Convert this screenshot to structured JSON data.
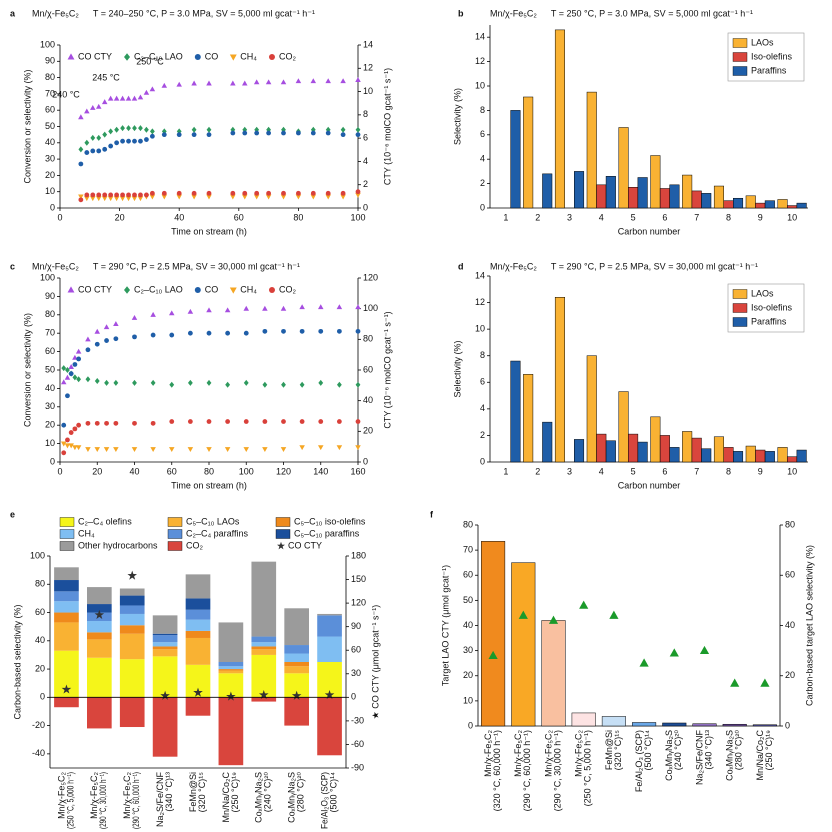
{
  "chart_data": [
    {
      "type": "scatter",
      "label": "a",
      "title": "Mn/χ-Fe₅C₂",
      "subtitle": "T = 240–250 °C, P = 3.0 MPa, SV = 5,000 ml gcat⁻¹ h⁻¹",
      "xlabel": "Time on stream (h)",
      "ylabel": "Conversion or selectivity (%)",
      "y2label": "CTY (10⁻⁶ molCO gcat⁻¹ s⁻¹)",
      "xlim": [
        0,
        100
      ],
      "xticks": [
        0,
        20,
        40,
        60,
        80,
        100
      ],
      "ylim": [
        0,
        100
      ],
      "yticks": [
        0,
        10,
        20,
        30,
        40,
        50,
        60,
        70,
        80,
        90,
        100
      ],
      "y2lim": [
        0,
        14
      ],
      "y2ticks": [
        0,
        2,
        4,
        6,
        8,
        10,
        12,
        14
      ],
      "legend": "top",
      "annotations": [
        "240 °C",
        "245 °C",
        "250 °C"
      ],
      "x": [
        7,
        9,
        11,
        13,
        15,
        17,
        19,
        21,
        23,
        25,
        27,
        29,
        31,
        35,
        40,
        45,
        50,
        54,
        58,
        62,
        66,
        70,
        75,
        80,
        85,
        90,
        95,
        100
      ],
      "series": [
        {
          "name": "CO CTY",
          "color": "#a64ee0",
          "marker": "triangle",
          "axis": "y2",
          "values": [
            7.8,
            8.3,
            8.6,
            8.7,
            9.1,
            9.4,
            9.4,
            9.4,
            9.4,
            9.4,
            9.5,
            9.9,
            10.2,
            10.5,
            10.6,
            10.7,
            10.7,
            null,
            10.7,
            10.7,
            10.8,
            10.8,
            10.8,
            10.9,
            10.9,
            10.9,
            10.9,
            11.0
          ]
        },
        {
          "name": "C₂–C₁₀ LAO",
          "color": "#2e9a5e",
          "marker": "diamond",
          "values": [
            36,
            40,
            43,
            43,
            45,
            47,
            48,
            49,
            49,
            49,
            49,
            48,
            47,
            47,
            47,
            48,
            48,
            null,
            48,
            48,
            48,
            48,
            48,
            47,
            48,
            48,
            48,
            48
          ]
        },
        {
          "name": "CO",
          "color": "#1f5ea8",
          "marker": "circle",
          "values": [
            27,
            34,
            35,
            35,
            36,
            38,
            40,
            41,
            41,
            41,
            41,
            42,
            44,
            45,
            45,
            45,
            45,
            null,
            46,
            46,
            46,
            46,
            46,
            46,
            46,
            46,
            45,
            45
          ]
        },
        {
          "name": "CH₄",
          "color": "#f5a623",
          "marker": "triangle-down",
          "values": [
            7,
            6,
            6,
            6,
            6,
            6,
            6,
            6,
            6,
            6,
            6,
            7,
            7,
            7,
            7,
            7,
            7,
            null,
            7,
            7,
            7,
            7,
            7,
            7,
            7,
            7,
            7,
            8
          ]
        },
        {
          "name": "CO₂",
          "color": "#d9403a",
          "marker": "circle",
          "values": [
            5,
            8,
            8,
            8,
            8,
            8,
            8,
            8,
            8,
            8,
            8,
            8,
            9,
            9,
            9,
            9,
            9,
            null,
            9,
            9,
            9,
            9,
            9,
            9,
            9,
            9,
            9,
            10
          ]
        }
      ]
    },
    {
      "type": "bar",
      "label": "b",
      "title": "Mn/χ-Fe₅C₂",
      "subtitle": "T = 250 °C, P = 3.0 MPa, SV = 5,000 ml gcat⁻¹ h⁻¹",
      "xlabel": "Carbon number",
      "ylabel": "Selectivity (%)",
      "ylim": [
        0,
        15
      ],
      "yticks": [
        0,
        2,
        4,
        6,
        8,
        10,
        12,
        14
      ],
      "legend": "upper right",
      "categories": [
        1,
        2,
        3,
        4,
        5,
        6,
        7,
        8,
        9,
        10
      ],
      "series": [
        {
          "name": "LAOs",
          "color": "#f9b233",
          "values": [
            null,
            9.1,
            14.6,
            9.5,
            6.6,
            4.3,
            2.7,
            1.8,
            1.0,
            0.7
          ]
        },
        {
          "name": "Iso-olefins",
          "color": "#d9453d",
          "values": [
            null,
            null,
            null,
            1.9,
            1.7,
            1.6,
            1.4,
            0.6,
            0.4,
            0.2
          ]
        },
        {
          "name": "Paraffins",
          "color": "#1f5ea8",
          "values": [
            8.0,
            2.8,
            3.0,
            2.6,
            2.5,
            1.9,
            1.2,
            0.8,
            0.6,
            0.4
          ]
        }
      ]
    },
    {
      "type": "scatter",
      "label": "c",
      "title": "Mn/χ-Fe₅C₂",
      "subtitle": "T = 290 °C, P = 2.5 MPa, SV = 30,000 ml gcat⁻¹ h⁻¹",
      "xlabel": "Time on stream (h)",
      "ylabel": "Conversion or selectivity (%)",
      "y2label": "CTY (10⁻⁶ molCO gcat⁻¹ s⁻¹)",
      "xlim": [
        0,
        160
      ],
      "xticks": [
        0,
        20,
        40,
        60,
        80,
        100,
        120,
        140,
        160
      ],
      "ylim": [
        0,
        100
      ],
      "yticks": [
        0,
        10,
        20,
        30,
        40,
        50,
        60,
        70,
        80,
        90,
        100
      ],
      "y2lim": [
        0,
        120
      ],
      "y2ticks": [
        0,
        20,
        40,
        60,
        80,
        100,
        120
      ],
      "legend": "top",
      "x": [
        2,
        4,
        6,
        8,
        10,
        15,
        20,
        25,
        30,
        40,
        50,
        60,
        70,
        80,
        90,
        100,
        110,
        120,
        130,
        140,
        150,
        160
      ],
      "series": [
        {
          "name": "CO CTY",
          "color": "#a64ee0",
          "marker": "triangle",
          "axis": "y2",
          "values": [
            52,
            55,
            62,
            68,
            72,
            80,
            85,
            88,
            90,
            94,
            96,
            97,
            98,
            99,
            99,
            100,
            100,
            100,
            101,
            101,
            101,
            101
          ]
        },
        {
          "name": "C₂–C₁₀ LAO",
          "color": "#2e9a5e",
          "marker": "diamond",
          "values": [
            51,
            50,
            48,
            46,
            45,
            45,
            44,
            43,
            43,
            43,
            43,
            42,
            43,
            43,
            42,
            43,
            42,
            42,
            42,
            43,
            42,
            42
          ]
        },
        {
          "name": "CO",
          "color": "#1f5ea8",
          "marker": "circle",
          "values": [
            20,
            36,
            48,
            53,
            56,
            61,
            64,
            66,
            67,
            68,
            69,
            69,
            70,
            70,
            70,
            70,
            71,
            71,
            71,
            71,
            71,
            71
          ]
        },
        {
          "name": "CH₄",
          "color": "#f5a623",
          "marker": "triangle-down",
          "values": [
            10,
            9,
            9,
            8,
            8,
            7,
            7,
            7,
            7,
            7,
            7,
            7,
            7,
            7,
            7,
            7,
            7,
            7,
            8,
            8,
            8,
            8
          ]
        },
        {
          "name": "CO₂",
          "color": "#d9403a",
          "marker": "circle",
          "values": [
            5,
            12,
            16,
            18,
            20,
            21,
            21,
            21,
            21,
            21,
            21,
            22,
            22,
            22,
            22,
            22,
            22,
            22,
            22,
            22,
            22,
            22
          ]
        }
      ]
    },
    {
      "type": "bar",
      "label": "d",
      "title": "Mn/χ-Fe₅C₂",
      "subtitle": "T = 290 °C, P = 2.5 MPa, SV = 30,000 ml gcat⁻¹ h⁻¹",
      "xlabel": "Carbon number",
      "ylabel": "Selectivity (%)",
      "ylim": [
        0,
        14
      ],
      "yticks": [
        0,
        2,
        4,
        6,
        8,
        10,
        12,
        14
      ],
      "legend": "upper right",
      "categories": [
        1,
        2,
        3,
        4,
        5,
        6,
        7,
        8,
        9,
        10
      ],
      "series": [
        {
          "name": "LAOs",
          "color": "#f9b233",
          "values": [
            null,
            6.6,
            12.4,
            8.0,
            5.3,
            3.4,
            2.3,
            1.9,
            1.2,
            1.1
          ]
        },
        {
          "name": "Iso-olefins",
          "color": "#d9453d",
          "values": [
            null,
            null,
            null,
            2.1,
            2.1,
            2.0,
            1.8,
            1.1,
            0.9,
            0.4
          ]
        },
        {
          "name": "Paraffins",
          "color": "#1f5ea8",
          "values": [
            7.6,
            3.0,
            1.7,
            1.6,
            1.5,
            1.1,
            1.0,
            0.8,
            0.8,
            0.9
          ]
        }
      ]
    },
    {
      "type": "stacked_bar",
      "label": "e",
      "ylabel": "Carbon-based selectivity (%)",
      "y2label": "★ CO CTY (μmol gcat⁻¹ s⁻¹)",
      "ylim": [
        -50,
        100
      ],
      "yticks": [
        -40,
        -20,
        0,
        20,
        40,
        60,
        80,
        100
      ],
      "y2lim": [
        -90,
        180
      ],
      "y2ticks": [
        -90,
        -60,
        -30,
        0,
        30,
        60,
        90,
        120,
        150,
        180
      ],
      "legend": "above",
      "categories": [
        [
          "Mn/χ-Fe₅C₂",
          "(250 °C, 5,000 h⁻¹)"
        ],
        [
          "Mn/χ-Fe₅C₂",
          "(290 °C, 30,000 h⁻¹)"
        ],
        [
          "Mn/χ-Fe₅C₂",
          "(290 °C, 60,000 h⁻¹)"
        ],
        [
          "Na₂S/Fe/CNF",
          "(340 °C)¹³"
        ],
        [
          "FeMn@Si",
          "(320 °C)¹⁵"
        ],
        [
          "Mn/Na/Co₂C",
          "(250 °C)¹⁹"
        ],
        [
          "CoₓMnᵧNa₂S",
          "(240 °C)²⁰"
        ],
        [
          "CoₓMnᵧNa₂S",
          "(280 °C)²⁰"
        ],
        [
          "Fe/Al₂O₃ (SCP)",
          "(500 °C)¹⁴"
        ]
      ],
      "series": [
        {
          "name": "C₂–C₄ olefins",
          "color": "#f5f51a",
          "values": [
            33,
            28,
            27,
            29,
            23,
            17,
            30,
            17,
            25
          ]
        },
        {
          "name": "C₅–C₁₀ LAOs",
          "color": "#f9b233",
          "values": [
            20,
            13,
            18,
            5,
            19,
            2,
            4,
            5,
            0
          ]
        },
        {
          "name": "C₅–C₁₀ iso-olefins",
          "color": "#ef8a1c",
          "values": [
            7,
            5,
            6,
            2,
            5,
            1,
            2,
            3,
            0
          ]
        },
        {
          "name": "CH₄",
          "color": "#7fbef2",
          "values": [
            8,
            8,
            8,
            3,
            8,
            2,
            3,
            6,
            18
          ]
        },
        {
          "name": "C₂–C₄ paraffins",
          "color": "#5b8fd9",
          "values": [
            7,
            6,
            6,
            5,
            7,
            3,
            4,
            6,
            15
          ]
        },
        {
          "name": "C₅–C₁₀ paraffins",
          "color": "#1b4f9c",
          "values": [
            8,
            6,
            7,
            1,
            8,
            0,
            0,
            0,
            0
          ]
        },
        {
          "name": "Other hydrocarbons",
          "color": "#9b9b9b",
          "values": [
            9,
            12,
            5,
            13,
            17,
            28,
            53,
            26,
            1
          ]
        },
        {
          "name": "CO₂",
          "color": "#d9453d",
          "values": [
            -7,
            -22,
            -21,
            -42,
            -13,
            -48,
            -3,
            -20,
            -41
          ]
        },
        {
          "name": "CO CTY",
          "color": "#333333",
          "marker": "star",
          "axis": "y2",
          "values": [
            10,
            105,
            155,
            2,
            6,
            1,
            3,
            2,
            3
          ]
        }
      ]
    },
    {
      "type": "bar",
      "label": "f",
      "ylabel": "Target LAO CTY (μmol gcat⁻¹)",
      "y2label": "Carbon-based target LAO selectivity (%)",
      "ylim": [
        0,
        80
      ],
      "yticks": [
        0,
        10,
        20,
        30,
        40,
        50,
        60,
        70,
        80
      ],
      "y2lim": [
        0,
        80
      ],
      "y2ticks": [
        0,
        20,
        40,
        60,
        80
      ],
      "categories": [
        [
          "Mn/χ-Fe₅C₂",
          "(320 °C, 60,000 h⁻¹)"
        ],
        [
          "Mn/χ-Fe₅C₂",
          "(290 °C, 60,000 h⁻¹)"
        ],
        [
          "Mn/χ-Fe₅C₂",
          "(290 °C, 30,000 h⁻¹)"
        ],
        [
          "Mn/χ-Fe₅C₂",
          "(250 °C, 5,000 h⁻¹)"
        ],
        [
          "FeMn@Si",
          "(320 °C)¹⁵"
        ],
        [
          "Fe/Al₂O₃ (SCP)",
          "(500 °C)¹⁴"
        ],
        [
          "CoₓMnᵧNa₂S",
          "(240 °C)²⁰"
        ],
        [
          "Na₂S/Fe/CNF",
          "(340 °C)¹³"
        ],
        [
          "CoₓMnᵧNa₂S",
          "(280 °C)²⁰"
        ],
        [
          "Mn/Na/Co₂C",
          "(250 °C)¹⁹"
        ]
      ],
      "series": [
        {
          "name": "Target LAO CTY",
          "colors": [
            "#f08a1e",
            "#f9a825",
            "#f9c0a0",
            "#fde3e3",
            "#c6dff5",
            "#6aa8e8",
            "#1f4e96",
            "#9070c0",
            "#7050a0",
            "#5050a0"
          ],
          "values": [
            73.5,
            65,
            42,
            5.2,
            3.8,
            1.4,
            1.2,
            0.9,
            0.7,
            0.5
          ]
        },
        {
          "name": "Carbon-based target LAO selectivity",
          "color": "#1a9a2a",
          "marker": "triangle",
          "axis": "y2",
          "values": [
            28,
            44,
            42,
            48,
            44,
            25,
            29,
            30,
            17,
            17
          ]
        }
      ]
    }
  ]
}
